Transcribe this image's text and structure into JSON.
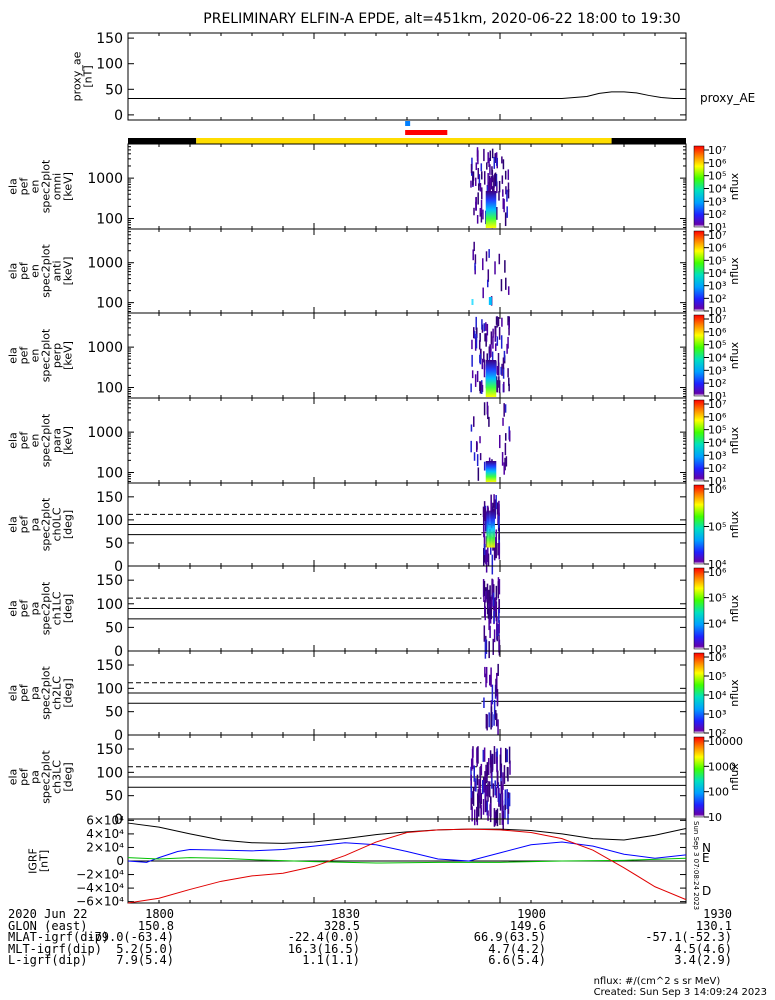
{
  "title": "PRELIMINARY ELFIN-A EPDE, alt=451km, 2020-06-22 18:00 to 19:30",
  "chart_data": [
    {
      "type": "line",
      "panel": "proxy_ae",
      "ylabel": [
        "proxy_ae",
        "[nT]"
      ],
      "yticks": [
        "150",
        "100",
        "50",
        "0"
      ],
      "ytick_values": [
        150,
        100,
        50,
        0
      ],
      "ylim": [
        -10,
        160
      ],
      "series": [
        {
          "name": "proxy_AE",
          "x_minutes": [
            0,
            10,
            20,
            30,
            40,
            50,
            60,
            70,
            74,
            76,
            78,
            80,
            82,
            84,
            86,
            88,
            90
          ],
          "values": [
            32,
            32,
            32,
            32,
            32,
            32,
            32,
            32,
            36,
            42,
            45,
            45,
            43,
            38,
            34,
            32,
            32
          ]
        }
      ]
    },
    {
      "type": "heatmap",
      "panel": "ela_pef_en_spec2plot_omni",
      "ylabel": [
        "ela",
        "pef",
        "en",
        "spec2plot",
        "omni",
        "[keV]"
      ],
      "yticks": [
        "1000",
        "100"
      ],
      "ylim": [
        55,
        7000
      ],
      "colorbar": {
        "label": "nflux",
        "ticks": [
          "10⁷",
          "10⁶",
          "10⁵",
          "10⁴",
          "10³",
          "10²",
          "10¹"
        ]
      },
      "active_x_minutes": [
        55,
        62
      ]
    },
    {
      "type": "heatmap",
      "panel": "ela_pef_en_spec2plot_anti",
      "ylabel": [
        "ela",
        "pef",
        "en",
        "spec2plot",
        "anti",
        "[keV]"
      ],
      "yticks": [
        "1000",
        "100"
      ],
      "ylim": [
        55,
        7000
      ],
      "colorbar": {
        "label": "nflux",
        "ticks": [
          "10⁷",
          "10⁶",
          "10⁵",
          "10⁴",
          "10³",
          "10²",
          "10¹"
        ]
      },
      "active_x_minutes": [
        55,
        62
      ]
    },
    {
      "type": "heatmap",
      "panel": "ela_pef_en_spec2plot_perp",
      "ylabel": [
        "ela",
        "pef",
        "en",
        "spec2plot",
        "perp",
        "[keV]"
      ],
      "yticks": [
        "1000",
        "100"
      ],
      "ylim": [
        55,
        7000
      ],
      "colorbar": {
        "label": "nflux",
        "ticks": [
          "10⁷",
          "10⁶",
          "10⁵",
          "10⁴",
          "10³",
          "10²",
          "10¹"
        ]
      },
      "active_x_minutes": [
        55,
        62
      ]
    },
    {
      "type": "heatmap",
      "panel": "ela_pef_en_spec2plot_para",
      "ylabel": [
        "ela",
        "pef",
        "en",
        "spec2plot",
        "para",
        "[keV]"
      ],
      "yticks": [
        "1000",
        "100"
      ],
      "ylim": [
        55,
        7000
      ],
      "colorbar": {
        "label": "nflux",
        "ticks": [
          "10⁷",
          "10⁶",
          "10⁵",
          "10⁴",
          "10³",
          "10²",
          "10¹"
        ]
      },
      "active_x_minutes": [
        55,
        62
      ]
    },
    {
      "type": "heatmap",
      "panel": "ela_pef_pa_spec2plot_ch0LC",
      "ylabel": [
        "ela",
        "pef",
        "pa",
        "spec2plot",
        "ch0LC",
        "[deg]"
      ],
      "yticks": [
        "150",
        "100",
        "50",
        "0"
      ],
      "ylim": [
        0,
        180
      ],
      "colorbar": {
        "label": "nflux",
        "ticks": [
          "10⁶",
          "10⁵",
          "10⁴"
        ]
      }
    },
    {
      "type": "heatmap",
      "panel": "ela_pef_pa_spec2plot_ch1LC",
      "ylabel": [
        "ela",
        "pef",
        "pa",
        "spec2plot",
        "ch1LC",
        "[deg]"
      ],
      "yticks": [
        "150",
        "100",
        "50",
        "0"
      ],
      "ylim": [
        0,
        180
      ],
      "colorbar": {
        "label": "nflux",
        "ticks": [
          "10⁶",
          "10⁵",
          "10⁴",
          "10³"
        ]
      }
    },
    {
      "type": "heatmap",
      "panel": "ela_pef_pa_spec2plot_ch2LC",
      "ylabel": [
        "ela",
        "pef",
        "pa",
        "spec2plot",
        "ch2LC",
        "[deg]"
      ],
      "yticks": [
        "150",
        "100",
        "50",
        "0"
      ],
      "ylim": [
        0,
        180
      ],
      "colorbar": {
        "label": "nflux",
        "ticks": [
          "10⁶",
          "10⁵",
          "10⁴",
          "10³",
          "10²"
        ]
      }
    },
    {
      "type": "heatmap",
      "panel": "ela_pef_pa_spec2plot_ch3LC",
      "ylabel": [
        "ela",
        "pef",
        "pa",
        "spec2plot",
        "ch3LC",
        "[deg]"
      ],
      "yticks": [
        "150",
        "100",
        "50",
        "0"
      ],
      "ylim": [
        0,
        180
      ],
      "colorbar": {
        "label": "nflux",
        "ticks": [
          "10000",
          "1000",
          "100",
          "10"
        ]
      }
    },
    {
      "type": "line",
      "panel": "IGRF",
      "ylabel": [
        "IGRF",
        "[nT]"
      ],
      "yticks": [
        "6×10⁴",
        "4×10⁴",
        "2×10⁴",
        "0",
        "−2×10⁴",
        "−4×10⁴",
        "−6×10⁴"
      ],
      "ytick_values": [
        60000,
        40000,
        20000,
        0,
        -20000,
        -40000,
        -60000
      ],
      "ylim": [
        -62000,
        62000
      ],
      "series": [
        {
          "name": "",
          "color": "#000000",
          "x_minutes": [
            0,
            5,
            10,
            15,
            20,
            25,
            30,
            35,
            40,
            45,
            50,
            55,
            60,
            65,
            70,
            75,
            80,
            85,
            90
          ],
          "values": [
            56000,
            50000,
            40000,
            31000,
            27000,
            26000,
            28000,
            33000,
            39000,
            43000,
            46000,
            47000,
            47000,
            45000,
            40000,
            33000,
            31000,
            38000,
            48000
          ]
        },
        {
          "name": "N",
          "color": "#0000ff",
          "x_minutes": [
            0,
            3,
            5,
            8,
            10,
            15,
            20,
            25,
            30,
            35,
            40,
            45,
            50,
            55,
            60,
            65,
            70,
            75,
            80,
            85,
            90
          ],
          "values": [
            0,
            -2000,
            5000,
            14000,
            17000,
            16000,
            15000,
            17000,
            22000,
            27000,
            24000,
            14000,
            3000,
            0,
            12000,
            24000,
            28000,
            22000,
            10000,
            4000,
            9000
          ]
        },
        {
          "name": "E",
          "color": "#00c000",
          "x_minutes": [
            0,
            5,
            10,
            15,
            20,
            30,
            40,
            50,
            60,
            70,
            80,
            90
          ],
          "values": [
            5000,
            3000,
            5000,
            4000,
            2000,
            -1000,
            -3000,
            -2000,
            -2000,
            0,
            1000,
            4000
          ]
        },
        {
          "name": "D",
          "color": "#e00000",
          "x_minutes": [
            0,
            5,
            10,
            15,
            20,
            25,
            30,
            35,
            40,
            45,
            50,
            55,
            60,
            65,
            70,
            75,
            80,
            85,
            90
          ],
          "values": [
            -62000,
            -55000,
            -42000,
            -30000,
            -22000,
            -18000,
            -8000,
            8000,
            28000,
            42000,
            46000,
            47000,
            46000,
            42000,
            33000,
            16000,
            -10000,
            -38000,
            -57000
          ]
        }
      ],
      "side_text": "Sun Sep  3 07:08:24 2023"
    }
  ],
  "x_axis": {
    "tick_minutes": [
      0,
      30,
      60,
      90
    ],
    "rows": [
      {
        "label": "2020 Jun 22",
        "values": [
          "1800",
          "1830",
          "1900",
          "1930"
        ]
      },
      {
        "label": "GLON (east)",
        "values": [
          "150.8",
          "328.5",
          "149.6",
          "130.1"
        ]
      },
      {
        "label": "MLAT-igrf(dip)",
        "values": [
          "-79.0(-63.4)",
          "-22.4(0.0)",
          "66.9(63.5)",
          "-57.1(-52.3)"
        ]
      },
      {
        "label": "MLT-igrf(dip)",
        "values": [
          "5.2(5.0)",
          "16.3(16.5)",
          "4.7(4.2)",
          "4.5(4.6)"
        ]
      },
      {
        "label": "L-igrf(dip)",
        "values": [
          "7.9(5.4)",
          "1.1(1.1)",
          "6.6(5.4)",
          "3.4(2.9)"
        ]
      }
    ]
  },
  "status_bar": {
    "colors": {
      "black": "#000000",
      "yellow": "#ffdd00",
      "red": "#ff0000",
      "blue": "#0080ff"
    }
  },
  "footer": {
    "nflux_units": "nflux: #/(cm^2 s sr MeV)",
    "created": "Created: Sun Sep  3 14:09:24 2023"
  }
}
